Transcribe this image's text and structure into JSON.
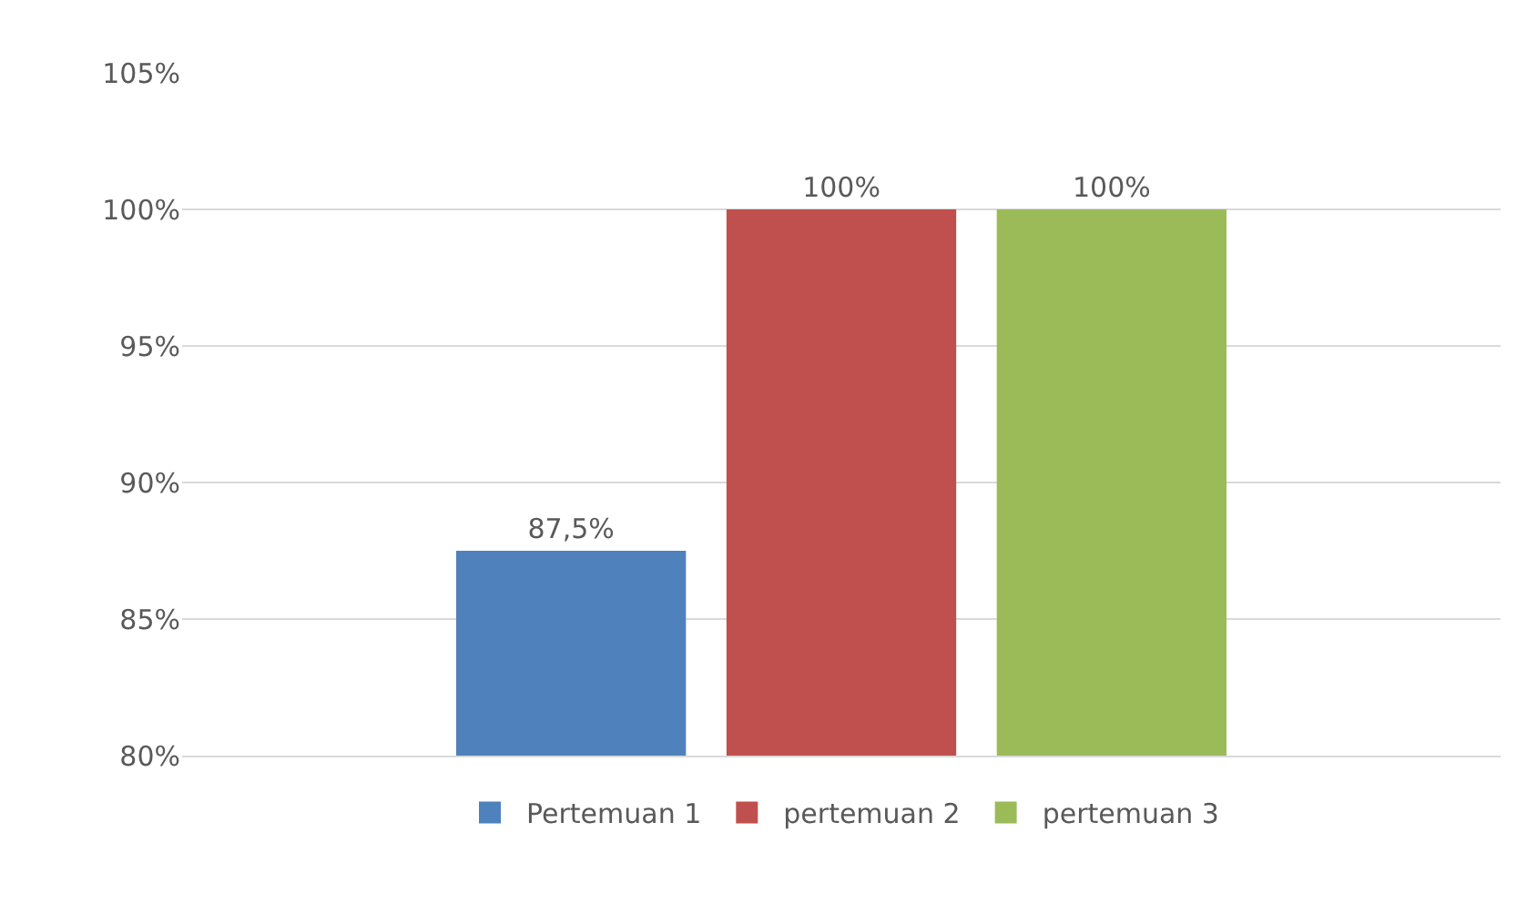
{
  "chart_data": {
    "type": "bar",
    "categories": [
      null
    ],
    "series": [
      {
        "name": "Pertemuan 1",
        "color": "#4f81bd",
        "values": [
          87.5
        ],
        "value_labels": [
          "87,5%"
        ]
      },
      {
        "name": "pertemuan 2",
        "color": "#c0504d",
        "values": [
          100
        ],
        "value_labels": [
          "100%"
        ]
      },
      {
        "name": "pertemuan 3",
        "color": "#9bbb59",
        "values": [
          100
        ],
        "value_labels": [
          "100%"
        ]
      }
    ],
    "ylim": [
      80,
      105
    ],
    "yticks": [
      {
        "value": 80,
        "label": "80%"
      },
      {
        "value": 85,
        "label": "85%"
      },
      {
        "value": 90,
        "label": "90%"
      },
      {
        "value": 95,
        "label": "95%"
      },
      {
        "value": 100,
        "label": "100%"
      },
      {
        "value": 105,
        "label": "105%"
      }
    ],
    "grid": "y",
    "legend": "bottom"
  }
}
